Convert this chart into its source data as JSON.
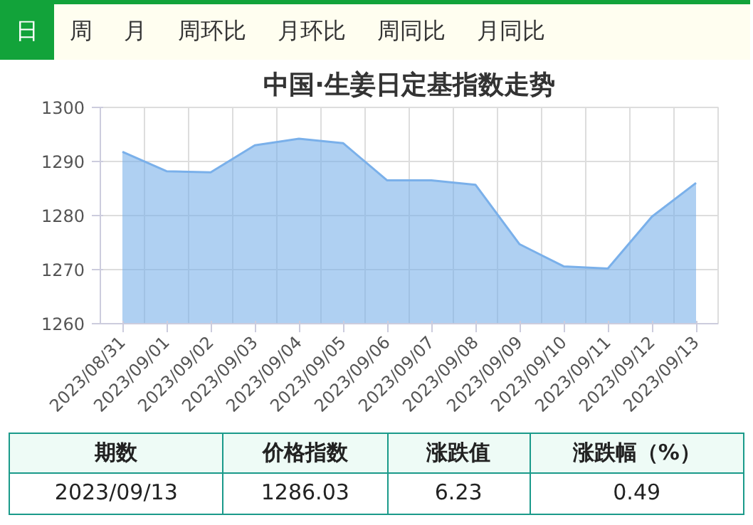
{
  "chart_data": [
    {
      "type": "other",
      "annotations": [
        "日",
        "周",
        "月",
        "周环比",
        "月环比",
        "周同比",
        "月同比"
      ]
    },
    {
      "type": "area",
      "title": "中国·生姜日定基指数走势",
      "categories": [
        "2023/08/31",
        "2023/09/01",
        "2023/09/02",
        "2023/09/03",
        "2023/09/04",
        "2023/09/05",
        "2023/09/06",
        "2023/09/07",
        "2023/09/08",
        "2023/09/09",
        "2023/09/10",
        "2023/09/11",
        "2023/09/12",
        "2023/09/13"
      ],
      "values": [
        1291.8,
        1288.2,
        1288.0,
        1293.0,
        1294.2,
        1293.4,
        1286.5,
        1286.5,
        1285.7,
        1274.7,
        1270.6,
        1270.2,
        1279.8,
        1286.03
      ],
      "color": "#7ab0ea",
      "ylim": [
        1260,
        1300
      ],
      "yticks": [
        1260,
        1270,
        1280,
        1290,
        1300
      ],
      "grid": true
    },
    {
      "type": "other",
      "annotations": [
        "期数",
        "价格指数",
        "涨跌值",
        "涨跌幅（%）",
        "2023/09/13",
        "1286.03",
        "6.23",
        "0.49"
      ]
    }
  ]
}
